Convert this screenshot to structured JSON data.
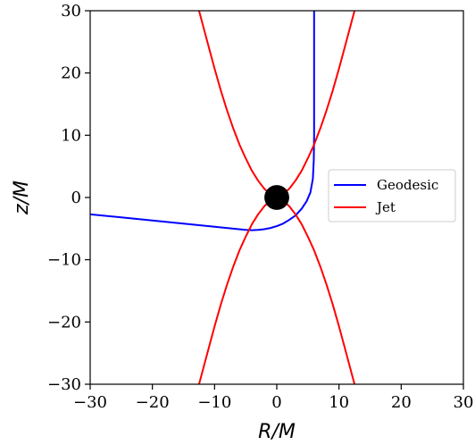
{
  "chart_data": {
    "type": "line",
    "xlabel": "R/M",
    "ylabel": "z/M",
    "xlim": [
      -30,
      30
    ],
    "ylim": [
      -30,
      30
    ],
    "xticks": [
      -30,
      -20,
      -10,
      0,
      10,
      20,
      30
    ],
    "yticks": [
      -30,
      -20,
      -10,
      0,
      10,
      20,
      30
    ],
    "xtick_labels": [
      "−30",
      "−20",
      "−10",
      "0",
      "10",
      "20",
      "30"
    ],
    "ytick_labels": [
      "−30",
      "−20",
      "−10",
      "0",
      "10",
      "20",
      "30"
    ],
    "grid": false,
    "legend_position": "center-right",
    "legend": [
      {
        "label": "Geodesic",
        "color": "#0000ff"
      },
      {
        "label": "Jet",
        "color": "#ff0000"
      }
    ],
    "series": [
      {
        "name": "Geodesic",
        "color": "#0000ff",
        "x": [
          -30,
          -25,
          -20,
          -15,
          -10,
          -7,
          -5,
          -4,
          -3,
          -2,
          -1,
          0,
          1,
          2,
          3,
          4,
          4.8,
          5.4,
          5.8,
          5.95,
          6.0,
          6.0,
          6.0
        ],
        "y": [
          -2.7,
          -3.2,
          -3.7,
          -4.2,
          -4.7,
          -5.0,
          -5.2,
          -5.25,
          -5.2,
          -5.1,
          -4.9,
          -4.6,
          -4.2,
          -3.6,
          -2.9,
          -1.8,
          -0.6,
          0.8,
          3.0,
          6.0,
          10.0,
          20.0,
          30.0
        ]
      },
      {
        "name": "Jet",
        "color": "#ff0000",
        "x": [
          -12.5,
          -11,
          -10,
          -9,
          -8,
          -7,
          -6,
          -5,
          -4,
          -3,
          -2,
          -1,
          -0.5,
          0,
          0.5,
          1,
          2,
          3,
          4,
          5,
          6,
          7,
          8,
          9,
          10,
          11,
          12.5
        ],
        "y": [
          30,
          24.4,
          20.7,
          17.2,
          14.0,
          11.1,
          8.5,
          6.3,
          4.3,
          2.7,
          1.4,
          0.5,
          0.15,
          0,
          0.15,
          0.5,
          1.4,
          2.7,
          4.3,
          6.3,
          8.5,
          11.1,
          14.0,
          17.2,
          20.7,
          24.4,
          30
        ]
      },
      {
        "name": "Jet",
        "color": "#ff0000",
        "x": [
          -12.5,
          -11,
          -10,
          -9,
          -8,
          -7,
          -6,
          -5,
          -4,
          -3,
          -2,
          -1,
          -0.5,
          0,
          0.5,
          1,
          2,
          3,
          4,
          5,
          6,
          7,
          8,
          9,
          10,
          11,
          12.5
        ],
        "y": [
          -30,
          -24.4,
          -20.7,
          -17.2,
          -14.0,
          -11.1,
          -8.5,
          -6.3,
          -4.3,
          -2.7,
          -1.4,
          -0.5,
          -0.15,
          0,
          -0.15,
          -0.5,
          -1.4,
          -2.7,
          -4.3,
          -6.3,
          -8.5,
          -11.1,
          -14.0,
          -17.2,
          -20.7,
          -24.4,
          -30
        ]
      }
    ],
    "black_hole": {
      "x": 0,
      "y": 0,
      "radius": 2,
      "color": "#000000"
    }
  }
}
